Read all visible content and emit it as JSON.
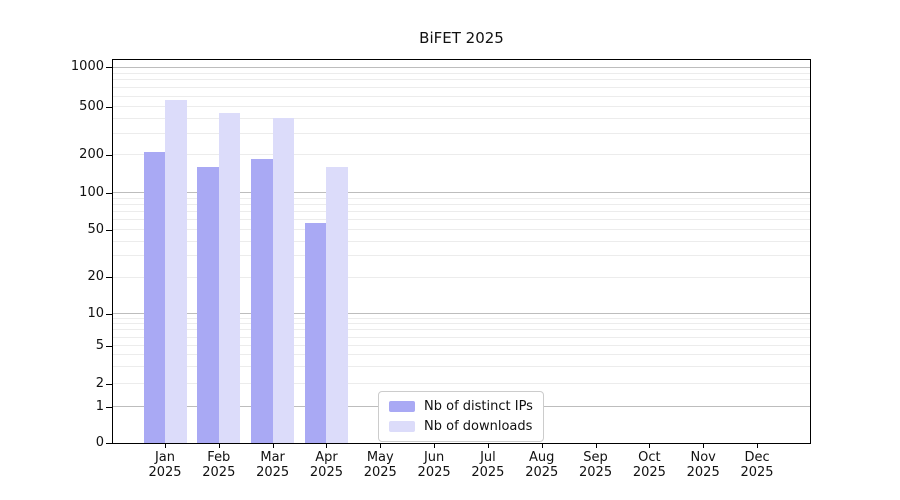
{
  "chart_data": {
    "type": "bar",
    "title": "BiFET 2025",
    "months": [
      "Jan",
      "Feb",
      "Mar",
      "Apr",
      "May",
      "Jun",
      "Jul",
      "Aug",
      "Sep",
      "Oct",
      "Nov",
      "Dec"
    ],
    "year_label": "2025",
    "y_ticks": [
      0,
      1,
      2,
      5,
      10,
      20,
      50,
      100,
      200,
      500,
      1000
    ],
    "y_scale": "logarithmic above 1, linear 0-1",
    "ylim": [
      0,
      1000
    ],
    "grid": "horizontal major + minor log gridlines",
    "legend_position": "inside plot, bottom center",
    "series": [
      {
        "name": "Nb of distinct IPs",
        "color": "#a9a9f4",
        "values": [
          210,
          160,
          185,
          56,
          null,
          null,
          null,
          null,
          null,
          null,
          null,
          null
        ]
      },
      {
        "name": "Nb of downloads",
        "color": "#dcdcfa",
        "values": [
          560,
          445,
          405,
          158,
          null,
          null,
          null,
          null,
          null,
          null,
          null,
          null
        ]
      }
    ]
  }
}
